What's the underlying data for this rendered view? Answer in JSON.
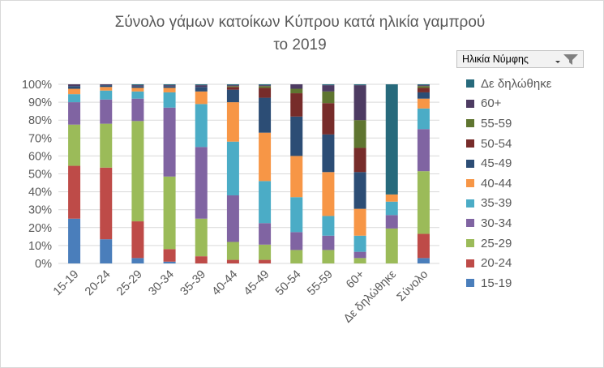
{
  "chart_data": {
    "type": "stacked-bar-100",
    "title": "Σύνολο γάμων κατοίκων Κύπρου κατά ηλικία γαμπρού",
    "subtitle": "το 2019",
    "xlabel": "",
    "ylabel": "",
    "ylim": [
      0,
      100
    ],
    "yticks": [
      "0%",
      "10%",
      "20%",
      "30%",
      "40%",
      "50%",
      "60%",
      "70%",
      "80%",
      "90%",
      "100%"
    ],
    "categories": [
      "15-19",
      "20-24",
      "25-29",
      "30-34",
      "35-39",
      "40-44",
      "45-49",
      "50-54",
      "55-59",
      "60+",
      "Δε δηλώθηκε",
      "Σύνολο"
    ],
    "legend_title": "Ηλικία Νύμφης",
    "legend_position": "right",
    "series": [
      {
        "name": "15-19",
        "color": "#4a7ebb",
        "values": [
          25,
          13.5,
          3,
          1,
          0,
          0,
          0,
          0,
          0,
          0,
          0,
          3
        ]
      },
      {
        "name": "20-24",
        "color": "#be4b48",
        "values": [
          29.5,
          40,
          20.5,
          7,
          4,
          2,
          2,
          0,
          0,
          0,
          0,
          13.5
        ]
      },
      {
        "name": "25-29",
        "color": "#9bbb59",
        "values": [
          23,
          24.5,
          56,
          40.5,
          21,
          10,
          8.5,
          7.5,
          7.5,
          3,
          19.5,
          35
        ]
      },
      {
        "name": "30-34",
        "color": "#8064a2",
        "values": [
          12.5,
          13.5,
          12.5,
          38.5,
          40,
          26,
          12,
          10,
          8,
          3.5,
          7.5,
          23.5
        ]
      },
      {
        "name": "35-39",
        "color": "#4bacc6",
        "values": [
          4.5,
          5,
          4,
          8.5,
          24,
          30,
          23.5,
          19.5,
          11,
          9,
          7.5,
          11.5
        ]
      },
      {
        "name": "40-44",
        "color": "#f79646",
        "values": [
          3,
          2,
          2,
          2.5,
          7,
          22,
          27,
          23,
          24.5,
          15,
          4,
          5.5
        ]
      },
      {
        "name": "45-49",
        "color": "#2c4d75",
        "values": [
          1.5,
          1,
          1,
          1,
          2.5,
          7,
          19.5,
          22,
          21,
          20.5,
          0,
          3.5
        ]
      },
      {
        "name": "50-54",
        "color": "#772c2a",
        "values": [
          0,
          0,
          0,
          0,
          0,
          1.5,
          5.5,
          13,
          17.5,
          13.5,
          0,
          2.5
        ]
      },
      {
        "name": "55-59",
        "color": "#5f7530",
        "values": [
          0,
          0,
          0,
          0,
          0,
          0.5,
          1,
          2.5,
          6.5,
          15.5,
          0,
          1
        ]
      },
      {
        "name": "60+",
        "color": "#4d3b62",
        "values": [
          1,
          0.5,
          0.5,
          0.5,
          1,
          0.5,
          0.5,
          2.5,
          3.5,
          19.5,
          0,
          0.5
        ]
      },
      {
        "name": "Δε δηλώθηκε",
        "color": "#276a7c",
        "values": [
          0,
          0,
          0.5,
          0.5,
          0.5,
          0.5,
          0.5,
          0,
          0.5,
          0.5,
          61.5,
          0.5
        ]
      }
    ]
  },
  "legend_header": {
    "label": "Ηλικία Νύμφης",
    "filter_icon": "filter-dropdown-icon"
  },
  "colors": {
    "gridline": "#d9d9d9",
    "axis_text": "#595959",
    "background": "#ffffff"
  }
}
